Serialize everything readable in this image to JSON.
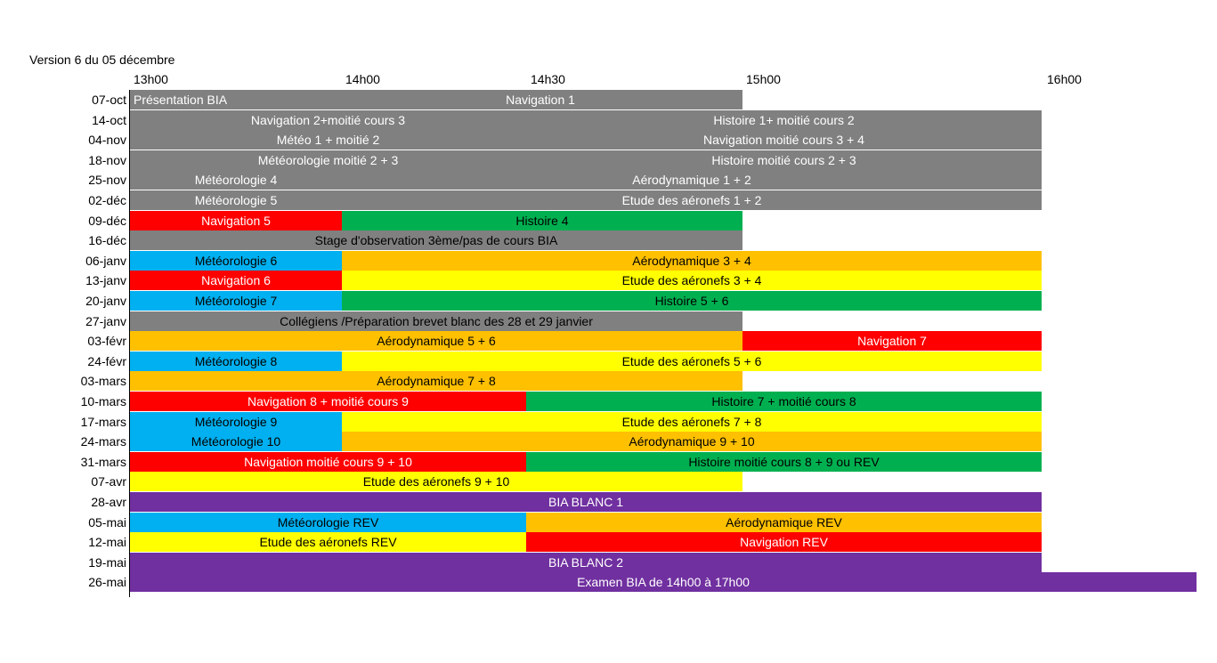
{
  "document": {
    "version_label": "Version 6 du 05 décembre",
    "time_labels": [
      "13h00",
      "14h00",
      "14h30",
      "15h00",
      "16h00"
    ]
  },
  "colors": {
    "gray": "#808080",
    "red": "#ff0000",
    "green": "#00b050",
    "blue": "#00b0f0",
    "orange": "#ffc000",
    "yellow": "#ffff00",
    "purple": "#7030a0"
  },
  "rows": [
    {
      "date": "07-oct",
      "blocks": [
        {
          "text": "Présentation BIA",
          "color": "gray",
          "start": 0,
          "end": 1.5,
          "align": "left",
          "fg": "white"
        },
        {
          "text": "Navigation 1",
          "color": "gray",
          "start": 1.5,
          "end": 3,
          "align": "center-span",
          "fg": "white"
        }
      ]
    },
    {
      "date": "14-oct",
      "blocks": [
        {
          "text": "Navigation 2+moitié cours 3",
          "color": "gray",
          "start": 0,
          "end": 2,
          "fg": "white"
        },
        {
          "text": "Histoire 1+ moitié cours 2",
          "color": "gray",
          "start": 2,
          "end": 4,
          "fg": "white"
        }
      ]
    },
    {
      "date": "04-nov",
      "blocks": [
        {
          "text": "Météo 1 + moitié  2",
          "color": "gray",
          "start": 0,
          "end": 2,
          "fg": "white"
        },
        {
          "text": "Navigation moitié cours 3 + 4",
          "color": "gray",
          "start": 2,
          "end": 4,
          "fg": "white"
        }
      ]
    },
    {
      "date": "18-nov",
      "blocks": [
        {
          "text": "Météorologie moitié 2 +  3",
          "color": "gray",
          "start": 0,
          "end": 2,
          "fg": "white"
        },
        {
          "text": "Histoire moitié cours 2 + 3",
          "color": "gray",
          "start": 2,
          "end": 4,
          "fg": "white"
        }
      ]
    },
    {
      "date": "25-nov",
      "blocks": [
        {
          "text": "Météorologie 4",
          "color": "gray",
          "start": 0,
          "end": 1,
          "fg": "white"
        },
        {
          "text": "Aérodynamique 1 + 2",
          "color": "gray",
          "start": 1,
          "end": 4,
          "fg": "white"
        }
      ]
    },
    {
      "date": "02-déc",
      "blocks": [
        {
          "text": "Météorologie 5",
          "color": "gray",
          "start": 0,
          "end": 1,
          "fg": "white"
        },
        {
          "text": "Etude des aéronefs 1 + 2",
          "color": "gray",
          "start": 1,
          "end": 4,
          "fg": "white"
        }
      ]
    },
    {
      "date": "09-déc",
      "blocks": [
        {
          "text": "Navigation 5",
          "color": "red",
          "start": 0,
          "end": 1,
          "fg": "white"
        },
        {
          "text": "Histoire 4",
          "color": "green",
          "start": 1,
          "end": 3,
          "fg": "black"
        }
      ]
    },
    {
      "date": "16-déc",
      "blocks": [
        {
          "text": "Stage d'observation 3ème/pas de cours BIA",
          "color": "gray",
          "start": 0,
          "end": 3,
          "fg": "black"
        }
      ]
    },
    {
      "date": "06-janv",
      "blocks": [
        {
          "text": "Météorologie 6",
          "color": "blue",
          "start": 0,
          "end": 1,
          "fg": "black"
        },
        {
          "text": "Aérodynamique 3 + 4",
          "color": "orange",
          "start": 1,
          "end": 4,
          "fg": "black"
        }
      ]
    },
    {
      "date": "13-janv",
      "blocks": [
        {
          "text": "Navigation 6",
          "color": "red",
          "start": 0,
          "end": 1,
          "fg": "white"
        },
        {
          "text": "Etude des aéronefs  3 + 4",
          "color": "yellow",
          "start": 1,
          "end": 4,
          "fg": "black"
        }
      ]
    },
    {
      "date": "20-janv",
      "blocks": [
        {
          "text": "Météorologie 7",
          "color": "blue",
          "start": 0,
          "end": 1,
          "fg": "black"
        },
        {
          "text": "Histoire 5 + 6",
          "color": "green",
          "start": 1,
          "end": 4,
          "fg": "black"
        }
      ]
    },
    {
      "date": "27-janv",
      "blocks": [
        {
          "text": "Collégiens /Préparation brevet blanc des  28 et 29 janvier",
          "color": "gray",
          "start": 0,
          "end": 3,
          "fg": "black"
        }
      ]
    },
    {
      "date": "03-févr",
      "blocks": [
        {
          "text": "Aérodynamique 5 + 6",
          "color": "orange",
          "start": 0,
          "end": 3,
          "fg": "black"
        },
        {
          "text": "Navigation  7",
          "color": "red",
          "start": 3,
          "end": 4,
          "fg": "white"
        }
      ]
    },
    {
      "date": "24-févr",
      "blocks": [
        {
          "text": "Météorologie 8",
          "color": "blue",
          "start": 0,
          "end": 1,
          "fg": "black"
        },
        {
          "text": "Etude des aéronefs  5 + 6",
          "color": "yellow",
          "start": 1,
          "end": 4,
          "fg": "black"
        }
      ]
    },
    {
      "date": "03-mars",
      "blocks": [
        {
          "text": "Aérodynamique 7 + 8",
          "color": "orange",
          "start": 0,
          "end": 3,
          "fg": "black"
        }
      ]
    },
    {
      "date": "10-mars",
      "blocks": [
        {
          "text": "Navigation 8 + moitié cours 9",
          "color": "red",
          "start": 0,
          "end": 2,
          "fg": "white"
        },
        {
          "text": "Histoire  7 + moitié cours 8",
          "color": "green",
          "start": 2,
          "end": 4,
          "fg": "black"
        }
      ]
    },
    {
      "date": "17-mars",
      "blocks": [
        {
          "text": "Météorologie 9",
          "color": "blue",
          "start": 0,
          "end": 1,
          "fg": "black"
        },
        {
          "text": "Etude des aéronefs  7 + 8",
          "color": "yellow",
          "start": 1,
          "end": 4,
          "fg": "black"
        }
      ]
    },
    {
      "date": "24-mars",
      "blocks": [
        {
          "text": "Météorologie 10",
          "color": "blue",
          "start": 0,
          "end": 1,
          "fg": "black"
        },
        {
          "text": "Aérodynamique 9 + 10",
          "color": "orange",
          "start": 1,
          "end": 4,
          "fg": "black"
        }
      ]
    },
    {
      "date": "31-mars",
      "blocks": [
        {
          "text": "Navigation moitié cours 9 + 10",
          "color": "red",
          "start": 0,
          "end": 2,
          "fg": "white"
        },
        {
          "text": "Histoire moitié cours  8 + 9 ou REV",
          "color": "green",
          "start": 2,
          "end": 4,
          "fg": "black"
        }
      ]
    },
    {
      "date": "07-avr",
      "blocks": [
        {
          "text": "Etude des aéronefs 9 + 10",
          "color": "yellow",
          "start": 0,
          "end": 3,
          "fg": "black"
        }
      ]
    },
    {
      "date": "28-avr",
      "blocks": [
        {
          "text": "BIA BLANC 1",
          "color": "purple",
          "start": 0,
          "end": 4,
          "fg": "white"
        }
      ]
    },
    {
      "date": "05-mai",
      "blocks": [
        {
          "text": "Météorologie REV",
          "color": "blue",
          "start": 0,
          "end": 2,
          "fg": "black"
        },
        {
          "text": "Aérodynamique REV",
          "color": "orange",
          "start": 2,
          "end": 4,
          "fg": "black"
        }
      ]
    },
    {
      "date": "12-mai",
      "blocks": [
        {
          "text": "Etude des aéronefs REV",
          "color": "yellow",
          "start": 0,
          "end": 2,
          "fg": "black"
        },
        {
          "text": "Navigation REV",
          "color": "red",
          "start": 2,
          "end": 4,
          "fg": "white"
        }
      ]
    },
    {
      "date": "19-mai",
      "blocks": [
        {
          "text": "BIA BLANC 2",
          "color": "purple",
          "start": 0,
          "end": 4,
          "fg": "white"
        }
      ]
    },
    {
      "date": "26-mai",
      "blocks": [
        {
          "text": "Examen BIA  de 14h00 à 17h00",
          "color": "purple",
          "start": 0,
          "end": 5,
          "fg": "white"
        }
      ]
    }
  ]
}
